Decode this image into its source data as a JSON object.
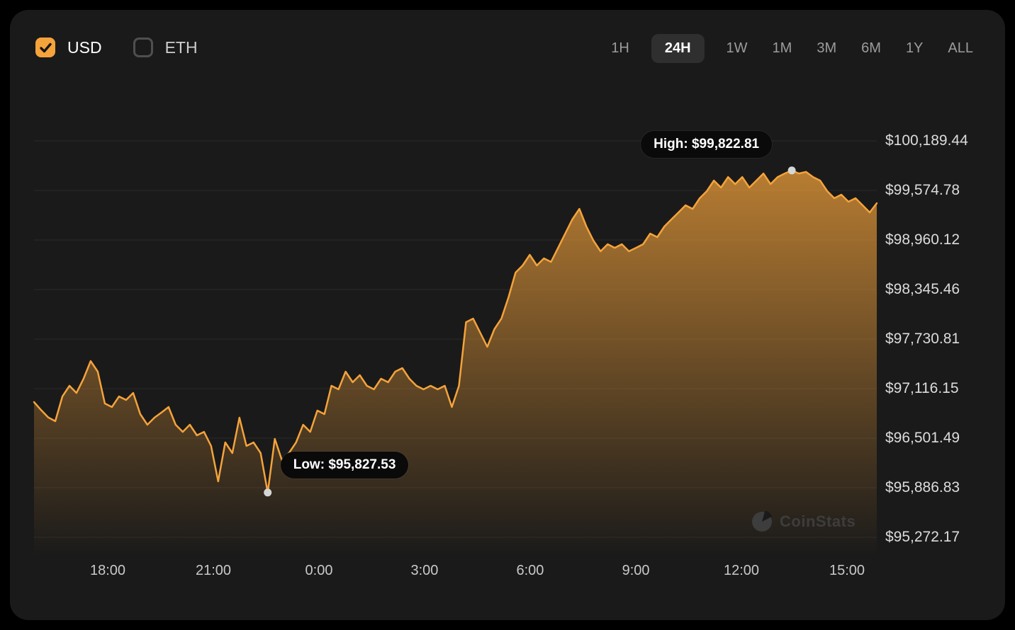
{
  "header": {
    "currency_toggles": [
      {
        "label": "USD",
        "checked": true
      },
      {
        "label": "ETH",
        "checked": false
      }
    ],
    "time_ranges": [
      {
        "label": "1H",
        "active": false
      },
      {
        "label": "24H",
        "active": true
      },
      {
        "label": "1W",
        "active": false
      },
      {
        "label": "1M",
        "active": false
      },
      {
        "label": "3M",
        "active": false
      },
      {
        "label": "6M",
        "active": false
      },
      {
        "label": "1Y",
        "active": false
      },
      {
        "label": "ALL",
        "active": false
      }
    ]
  },
  "watermark": {
    "label": "CoinStats"
  },
  "colors": {
    "accent_orange": "#f5a33b",
    "card_background": "#1a1a1a",
    "grid_line": "#292929",
    "tooltip_background": "#0a0a0a",
    "marker_dot": "#d6d6d6"
  },
  "chart_data": {
    "type": "area",
    "title": "",
    "xlabel": "",
    "ylabel": "",
    "line_color": "#f5a33b",
    "grid": true,
    "legend_position": "none",
    "ylim": [
      95272.17,
      100189.44
    ],
    "x_ticks": [
      {
        "label": "18:00",
        "f": 0.0875
      },
      {
        "label": "21:00",
        "f": 0.2128
      },
      {
        "label": "0:00",
        "f": 0.3381
      },
      {
        "label": "3:00",
        "f": 0.4634
      },
      {
        "label": "6:00",
        "f": 0.5887
      },
      {
        "label": "9:00",
        "f": 0.7141
      },
      {
        "label": "12:00",
        "f": 0.8394
      },
      {
        "label": "15:00",
        "f": 0.9647
      }
    ],
    "y_ticks": [
      {
        "label": "$100,189.44",
        "value": 100189.44
      },
      {
        "label": "$99,574.78",
        "value": 99574.78
      },
      {
        "label": "$98,960.12",
        "value": 98960.12
      },
      {
        "label": "$98,345.46",
        "value": 98345.46
      },
      {
        "label": "$97,730.81",
        "value": 97730.81
      },
      {
        "label": "$97,116.15",
        "value": 97116.15
      },
      {
        "label": "$96,501.49",
        "value": 96501.49
      },
      {
        "label": "$95,886.83",
        "value": 95886.83
      },
      {
        "label": "$95,272.17",
        "value": 95272.17
      }
    ],
    "values": [
      96949,
      96850,
      96760,
      96712,
      97019,
      97151,
      97063,
      97240,
      97458,
      97327,
      96932,
      96888,
      97019,
      96976,
      97063,
      96800,
      96668,
      96756,
      96820,
      96888,
      96668,
      96580,
      96668,
      96537,
      96580,
      96405,
      95966,
      96449,
      96317,
      96756,
      96405,
      96449,
      96317,
      95827.53,
      96493,
      96229,
      96317,
      96449,
      96668,
      96580,
      96844,
      96800,
      97151,
      97107,
      97327,
      97195,
      97283,
      97151,
      97107,
      97239,
      97195,
      97327,
      97371,
      97239,
      97151,
      97107,
      97151,
      97107,
      97151,
      96888,
      97151,
      97941,
      97985,
      97810,
      97634,
      97854,
      97985,
      98249,
      98556,
      98644,
      98776,
      98644,
      98732,
      98688,
      98863,
      99039,
      99215,
      99346,
      99127,
      98951,
      98820,
      98907,
      98863,
      98907,
      98820,
      98863,
      98907,
      99039,
      98995,
      99127,
      99215,
      99302,
      99390,
      99346,
      99478,
      99566,
      99697,
      99610,
      99741,
      99653,
      99741,
      99610,
      99697,
      99785,
      99653,
      99741,
      99785,
      99822.81,
      99785,
      99805,
      99741,
      99697,
      99566,
      99478,
      99522,
      99434,
      99478,
      99390,
      99302,
      99416
    ],
    "markers": [
      {
        "name": "high",
        "index": 107,
        "value": 99822.81,
        "label": "High: $99,822.81"
      },
      {
        "name": "low",
        "index": 33,
        "value": 95827.53,
        "label": "Low: $95,827.53"
      }
    ]
  }
}
